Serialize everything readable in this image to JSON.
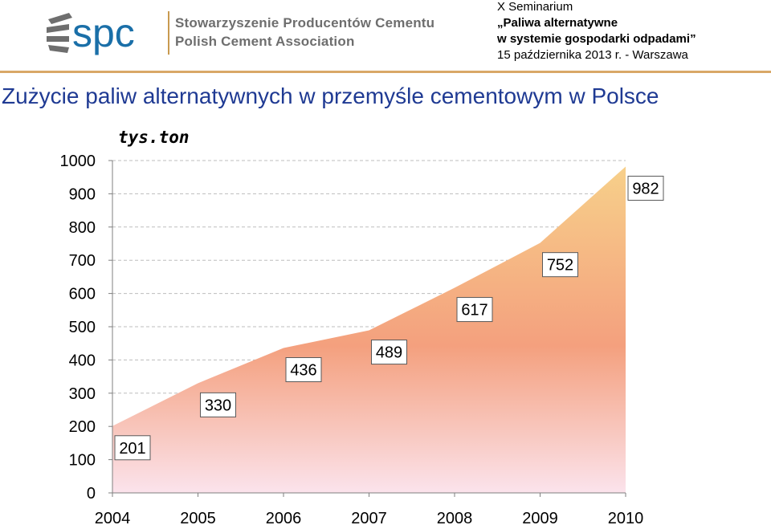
{
  "header": {
    "logo_text": "spc",
    "org_name_pl": "Stowarzyszenie Producentów Cementu",
    "org_name_en": "Polish Cement Association",
    "seminar": {
      "line1": "X Seminarium",
      "line2": "„Paliwa alternatywne",
      "line3": "w systemie gospodarki odpadami”",
      "line4": "15 października 2013 r. - Warszawa"
    }
  },
  "colors": {
    "title": "#1f3a93",
    "accent_rule": "#d9a867",
    "logo_grey": "#6e6e6e",
    "logo_blue": "#1a6fa8",
    "area_top": "#f7d08a",
    "area_mid": "#f4a07e",
    "area_bottom": "#fbe3ec"
  },
  "chart_data": {
    "type": "area",
    "title": "Zużycie paliw alternatywnych w przemyśle cementowym w Polsce",
    "unit_label": "tys.ton",
    "x": [
      "2004",
      "2005",
      "2006",
      "2007",
      "2008",
      "2009",
      "2010"
    ],
    "values": [
      201,
      330,
      436,
      489,
      617,
      752,
      982
    ],
    "data_labels": [
      "201",
      "330",
      "436",
      "489",
      "617",
      "752",
      "982"
    ],
    "yticks": [
      0,
      100,
      200,
      300,
      400,
      500,
      600,
      700,
      800,
      900,
      1000
    ],
    "ylim": [
      0,
      1000
    ],
    "grid": "horizontal-dashed",
    "legend": "none"
  }
}
